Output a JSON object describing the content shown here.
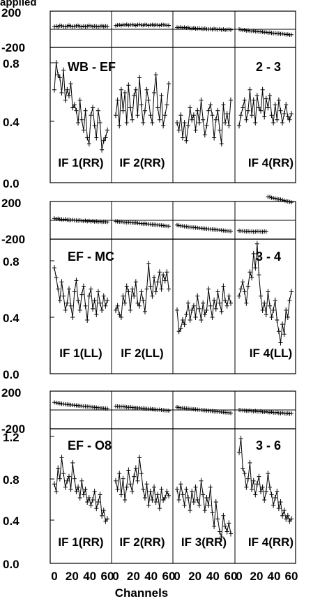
{
  "header_text": "applied",
  "x_axis_label": "Channels",
  "x_tick_labels": [
    "0",
    "20",
    "40",
    "60"
  ],
  "chart_data": [
    {
      "baseline": "WB - EF",
      "baseline_num": "2 - 3",
      "phase_ticks": [
        "200",
        "-200"
      ],
      "amp_ticks": [
        "0.8",
        "0.4",
        "0.0"
      ],
      "amp_ylim": [
        0.0,
        0.9
      ],
      "phase_ylim": [
        -200,
        200
      ],
      "if_labels": [
        "IF 1(RR)",
        "IF 2(RR)",
        "",
        "IF 4(RR)"
      ],
      "panels": [
        {
          "amp": [
            0.62,
            0.8,
            0.72,
            0.7,
            0.6,
            0.75,
            0.55,
            0.62,
            0.58,
            0.66,
            0.5,
            0.52,
            0.48,
            0.4,
            0.55,
            0.42,
            0.35,
            0.48,
            0.3,
            0.26,
            0.45,
            0.5,
            0.38,
            0.3,
            0.48,
            0.4,
            0.22,
            0.28,
            0.3,
            0.35
          ],
          "phase": [
            30,
            35,
            28,
            40,
            38,
            32,
            30,
            35,
            42,
            36,
            30,
            34,
            38,
            40,
            32,
            28,
            36,
            30,
            34,
            40,
            38,
            30,
            36,
            32,
            28,
            34,
            38,
            30,
            36,
            32
          ]
        },
        {
          "amp": [
            0.45,
            0.55,
            0.38,
            0.62,
            0.48,
            0.6,
            0.4,
            0.65,
            0.5,
            0.42,
            0.58,
            0.62,
            0.45,
            0.7,
            0.52,
            0.4,
            0.48,
            0.62,
            0.55,
            0.45,
            0.4,
            0.6,
            0.72,
            0.5,
            0.42,
            0.58,
            0.38,
            0.45,
            0.52,
            0.66
          ],
          "phase": [
            40,
            45,
            48,
            42,
            50,
            46,
            52,
            44,
            48,
            50,
            46,
            42,
            48,
            52,
            46,
            44,
            50,
            48,
            42,
            46,
            50,
            44,
            48,
            46,
            42,
            48,
            50,
            46,
            44,
            42
          ]
        },
        {
          "amp": [
            0.4,
            0.35,
            0.45,
            0.3,
            0.4,
            0.28,
            0.38,
            0.5,
            0.42,
            0.45,
            0.35,
            0.48,
            0.4,
            0.55,
            0.42,
            0.32,
            0.38,
            0.48,
            0.52,
            0.45,
            0.3,
            0.42,
            0.48,
            0.35,
            0.26,
            0.52,
            0.4,
            0.46,
            0.38,
            0.55
          ],
          "phase": [
            20,
            18,
            22,
            16,
            20,
            15,
            18,
            12,
            10,
            14,
            8,
            10,
            12,
            6,
            4,
            8,
            2,
            0,
            4,
            -2,
            6,
            0,
            -4,
            2,
            -6,
            0,
            -8,
            -4,
            -2,
            -6
          ]
        },
        {
          "amp": [
            0.38,
            0.45,
            0.5,
            0.55,
            0.42,
            0.48,
            0.62,
            0.45,
            0.55,
            0.4,
            0.58,
            0.5,
            0.48,
            0.62,
            0.44,
            0.56,
            0.5,
            0.58,
            0.45,
            0.4,
            0.52,
            0.42,
            0.55,
            0.48,
            0.4,
            0.46,
            0.52,
            0.44,
            0.42,
            0.46
          ],
          "phase": [
            0,
            -5,
            -10,
            -8,
            -14,
            -12,
            -18,
            -20,
            -16,
            -24,
            -22,
            -28,
            -26,
            -30,
            -34,
            -32,
            -38,
            -36,
            -40,
            -44,
            -42,
            -48,
            -46,
            -52,
            -50,
            -54,
            -58,
            -56,
            -62,
            -60
          ]
        }
      ]
    },
    {
      "baseline": "EF - MC",
      "baseline_num": "3 - 4",
      "phase_ticks": [
        "200",
        "-200"
      ],
      "amp_ticks": [
        "0.8",
        "0.4",
        "0.0"
      ],
      "amp_ylim": [
        0.0,
        0.9
      ],
      "phase_ylim": [
        -200,
        200
      ],
      "if_labels": [
        "IF 1(LL)",
        "IF 2(LL)",
        "",
        "IF 4(LL)"
      ],
      "panels": [
        {
          "amp": [
            0.75,
            0.68,
            0.6,
            0.52,
            0.65,
            0.55,
            0.45,
            0.5,
            0.6,
            0.48,
            0.4,
            0.58,
            0.66,
            0.52,
            0.45,
            0.56,
            0.62,
            0.48,
            0.38,
            0.55,
            0.6,
            0.46,
            0.52,
            0.42,
            0.58,
            0.5,
            0.45,
            0.55,
            0.48,
            0.52
          ],
          "phase": [
            20,
            15,
            18,
            12,
            10,
            8,
            12,
            6,
            4,
            2,
            6,
            0,
            -2,
            -4,
            0,
            -6,
            -8,
            -4,
            -10,
            -6,
            -12,
            -8,
            -14,
            -10,
            -16,
            -12,
            -18,
            -14,
            -16,
            -18
          ]
        },
        {
          "amp": [
            0.45,
            0.48,
            0.42,
            0.4,
            0.55,
            0.5,
            0.62,
            0.58,
            0.45,
            0.6,
            0.55,
            0.65,
            0.5,
            0.48,
            0.58,
            0.52,
            0.44,
            0.6,
            0.78,
            0.62,
            0.55,
            0.68,
            0.58,
            0.65,
            0.72,
            0.6,
            0.7,
            0.66,
            0.72,
            0.6
          ],
          "phase": [
            -10,
            -12,
            -16,
            -14,
            -18,
            -20,
            -22,
            -20,
            -24,
            -26,
            -28,
            -26,
            -30,
            -32,
            -34,
            -36,
            -34,
            -38,
            -40,
            -42,
            -44,
            -46,
            -48,
            -50,
            -52,
            -54,
            -56,
            -58,
            -60,
            -62
          ]
        },
        {
          "amp": [
            0.45,
            0.3,
            0.32,
            0.38,
            0.35,
            0.42,
            0.5,
            0.38,
            0.45,
            0.48,
            0.4,
            0.55,
            0.46,
            0.38,
            0.5,
            0.42,
            0.45,
            0.6,
            0.48,
            0.4,
            0.52,
            0.46,
            0.58,
            0.5,
            0.44,
            0.62,
            0.52,
            0.48,
            0.55,
            0.5
          ],
          "phase": [
            -50,
            -55,
            -58,
            -60,
            -64,
            -66,
            -70,
            -72,
            -74,
            -76,
            -78,
            -80,
            -82,
            -84,
            -86,
            -88,
            -90,
            -92,
            -94,
            -96,
            -98,
            -100,
            -102,
            -104,
            -106,
            -108,
            -110,
            -112,
            -114,
            -116
          ]
        },
        {
          "amp": [
            0.55,
            0.6,
            0.65,
            0.58,
            0.5,
            0.62,
            0.72,
            0.68,
            0.85,
            0.75,
            0.92,
            0.7,
            0.55,
            0.45,
            0.5,
            0.42,
            0.58,
            0.48,
            0.4,
            0.45,
            0.52,
            0.38,
            0.3,
            0.22,
            0.35,
            0.28,
            0.45,
            0.4,
            0.52,
            0.58
          ],
          "phase": [
            -110,
            -112,
            -114,
            -116,
            -118,
            -115,
            -120,
            -118,
            -122,
            -120,
            -116,
            -118,
            -120,
            -122,
            -118,
            -120,
            250,
            248,
            240,
            236,
            232,
            228,
            224,
            220,
            216,
            210,
            206,
            200,
            196,
            192
          ]
        }
      ]
    },
    {
      "baseline": "EF - O8",
      "baseline_num": "3 - 6",
      "phase_ticks": [
        "200",
        "-200"
      ],
      "amp_ticks": [
        "1.2",
        "0.8",
        "0.4",
        "0.0"
      ],
      "amp_ylim": [
        0.0,
        1.25
      ],
      "phase_ylim": [
        -200,
        200
      ],
      "if_labels": [
        "IF 1(RR)",
        "IF 2(RR)",
        "IF 3(RR)",
        "IF 4(RR)"
      ],
      "panels": [
        {
          "amp": [
            0.75,
            0.68,
            0.9,
            0.8,
            1.0,
            0.85,
            0.72,
            0.78,
            0.82,
            0.7,
            0.95,
            0.8,
            0.68,
            0.72,
            0.62,
            0.78,
            0.65,
            0.7,
            0.58,
            0.62,
            0.55,
            0.6,
            0.68,
            0.52,
            0.58,
            0.65,
            0.45,
            0.5,
            0.4,
            0.42
          ],
          "phase": [
            80,
            76,
            72,
            70,
            66,
            64,
            60,
            58,
            56,
            54,
            52,
            50,
            48,
            46,
            44,
            42,
            40,
            38,
            36,
            34,
            32,
            30,
            28,
            26,
            24,
            22,
            20,
            18,
            16,
            14
          ]
        },
        {
          "amp": [
            0.78,
            0.7,
            0.85,
            0.65,
            0.8,
            0.6,
            0.72,
            0.88,
            0.75,
            0.68,
            0.82,
            0.9,
            0.78,
            1.0,
            0.85,
            0.7,
            0.62,
            0.75,
            0.55,
            0.68,
            0.6,
            0.72,
            0.58,
            0.65,
            0.52,
            0.7,
            0.6,
            0.62,
            0.68,
            0.64
          ],
          "phase": [
            40,
            38,
            36,
            34,
            36,
            32,
            30,
            28,
            30,
            26,
            24,
            22,
            20,
            22,
            18,
            16,
            14,
            12,
            10,
            12,
            8,
            6,
            4,
            2,
            4,
            0,
            -2,
            -4,
            -6,
            -8
          ]
        },
        {
          "amp": [
            0.7,
            0.6,
            0.75,
            0.65,
            0.55,
            0.7,
            0.62,
            0.5,
            0.68,
            0.58,
            0.72,
            0.6,
            0.55,
            0.78,
            0.65,
            0.5,
            0.62,
            0.55,
            0.72,
            0.48,
            0.35,
            0.58,
            0.42,
            0.3,
            0.25,
            0.45,
            0.35,
            0.3,
            0.38,
            0.28
          ],
          "phase": [
            30,
            26,
            22,
            20,
            18,
            16,
            14,
            12,
            10,
            8,
            6,
            4,
            2,
            0,
            -2,
            -4,
            -6,
            -8,
            -10,
            -12,
            -14,
            -16,
            -18,
            -20,
            -22,
            -24,
            -26,
            -28,
            -30,
            -32
          ]
        },
        {
          "amp": [
            1.05,
            1.18,
            0.9,
            0.85,
            0.72,
            0.8,
            0.95,
            0.7,
            0.78,
            0.65,
            0.75,
            0.82,
            0.68,
            0.72,
            0.6,
            0.68,
            0.85,
            0.72,
            0.65,
            0.55,
            0.62,
            0.68,
            0.52,
            0.58,
            0.45,
            0.5,
            0.42,
            0.45,
            0.4,
            0.42
          ],
          "phase": [
            0,
            -2,
            -4,
            -6,
            -8,
            -10,
            -6,
            -12,
            -14,
            -10,
            -16,
            -18,
            -14,
            -20,
            -22,
            -18,
            -24,
            -26,
            -22,
            -28,
            -30,
            -26,
            -32,
            -34,
            -30,
            -36,
            -38,
            -34,
            -40,
            -36
          ]
        }
      ]
    }
  ]
}
